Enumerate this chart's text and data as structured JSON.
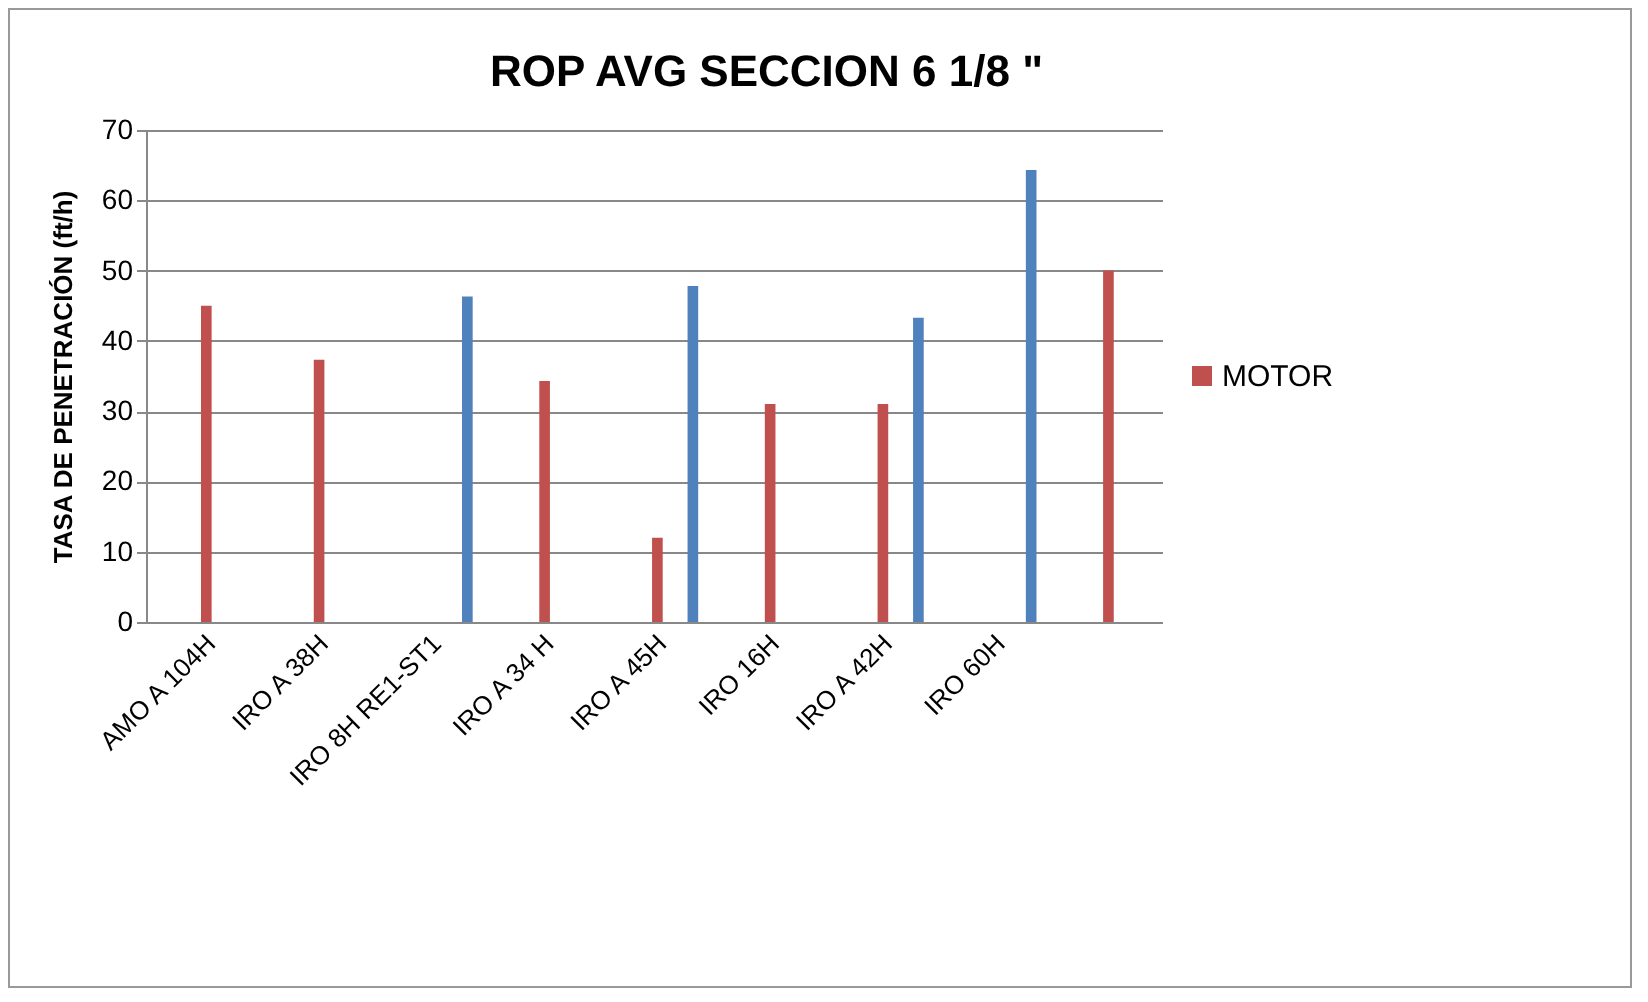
{
  "chart_data": {
    "type": "bar",
    "title": "ROP AVG SECCION 6 1/8 \"",
    "ylabel": "TASA DE PENETRACIÓN (ft/h)",
    "categories": [
      "AMO A 104H",
      "IRO A 38H",
      "IRO 8H RE1-ST1",
      "IRO A 34 H",
      "IRO A 45H",
      "IRO 16H",
      "IRO A 42H",
      "IRO 60H",
      null
    ],
    "series": [
      {
        "name": "MOTOR",
        "color": "#c0504d",
        "values": [
          45,
          37.3,
          null,
          34.3,
          12,
          31,
          31,
          null,
          50
        ]
      },
      {
        "color": "#4f81bd",
        "values": [
          null,
          null,
          46.3,
          null,
          47.8,
          null,
          43.3,
          64.3,
          null
        ]
      }
    ],
    "ylim": [
      0,
      70
    ],
    "yticks": [
      0,
      10,
      20,
      30,
      40,
      50,
      60,
      70
    ],
    "grid": "y",
    "legend": "right"
  }
}
